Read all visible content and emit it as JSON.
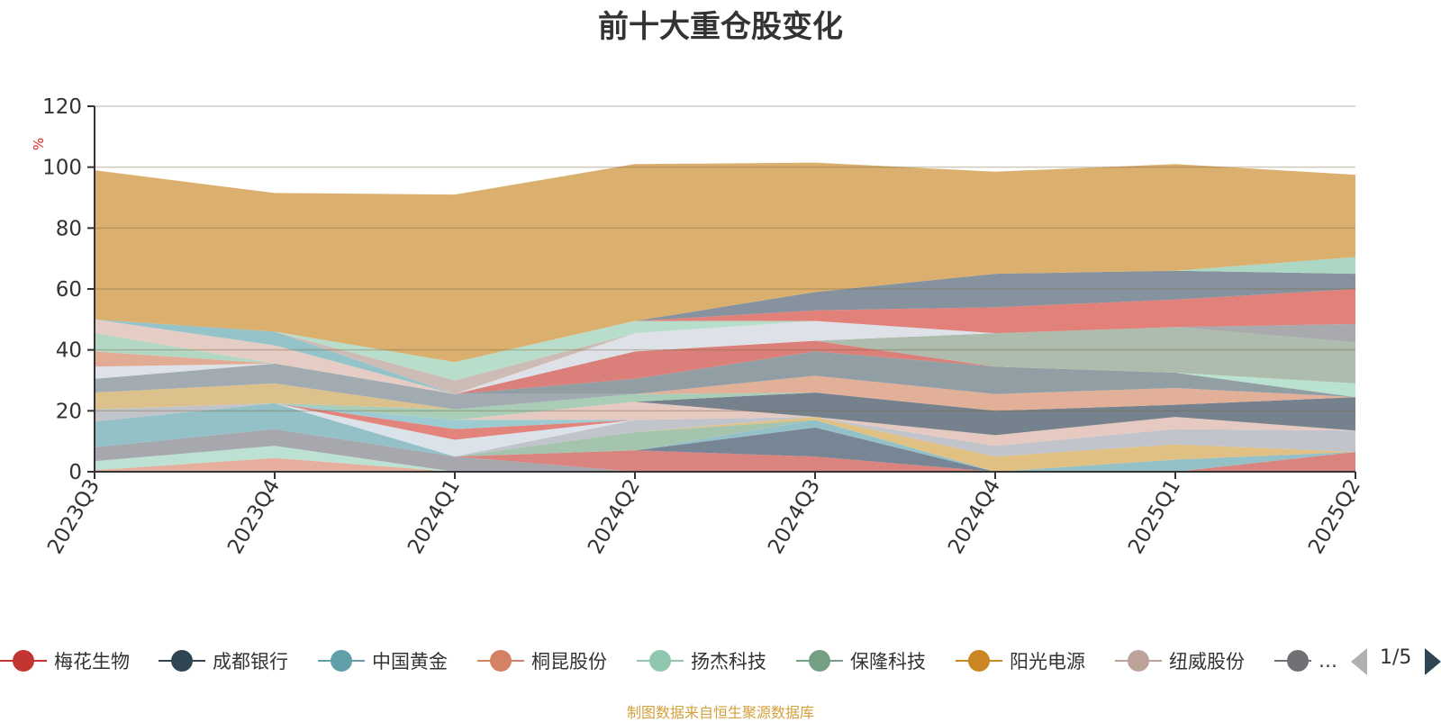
{
  "title": "前十大重仓股变化",
  "source": "制图数据来自恒生聚源数据库",
  "pager": {
    "text": "1/5"
  },
  "legend": [
    {
      "name": "梅花生物",
      "color": "#c23531"
    },
    {
      "name": "成都银行",
      "color": "#2f4554"
    },
    {
      "name": "中国黄金",
      "color": "#61a0a8"
    },
    {
      "name": "桐昆股份",
      "color": "#d48265"
    },
    {
      "name": "扬杰科技",
      "color": "#91c7ae"
    },
    {
      "name": "保隆科技",
      "color": "#749f83"
    },
    {
      "name": "阳光电源",
      "color": "#ca8622"
    },
    {
      "name": "纽威股份",
      "color": "#bda29a"
    },
    {
      "name": "…",
      "color": "#6e7074"
    }
  ],
  "chart_data": {
    "type": "area",
    "stacked": true,
    "ylabel": "%",
    "ylim": [
      0,
      120
    ],
    "yticks": [
      0,
      20,
      40,
      60,
      80,
      100,
      120
    ],
    "categories": [
      "2023Q3",
      "2023Q4",
      "2024Q1",
      "2024Q2",
      "2024Q3",
      "2024Q4",
      "2025Q1",
      "2025Q2"
    ],
    "series": [
      {
        "color": "#e4a895",
        "values": [
          0.5,
          4.5,
          0,
          0,
          0,
          0,
          0,
          0
        ]
      },
      {
        "color": "#b8dfcf",
        "values": [
          3,
          4,
          0,
          0,
          0,
          0,
          0,
          0
        ]
      },
      {
        "color": "#a0a0a8",
        "values": [
          4.5,
          5.5,
          5,
          0,
          0,
          0,
          0,
          0
        ]
      },
      {
        "color": "#d77b76",
        "values": [
          0,
          0,
          0,
          7,
          5,
          0,
          0,
          6.5
        ]
      },
      {
        "color": "#6e7c8c",
        "values": [
          0,
          0,
          0,
          0,
          9.5,
          0,
          0,
          0
        ]
      },
      {
        "color": "#8cbcc4",
        "values": [
          8.5,
          8.5,
          0,
          0,
          2.5,
          0,
          4,
          0
        ]
      },
      {
        "color": "#9dbfa8",
        "values": [
          0,
          0,
          0,
          6,
          0,
          0,
          0,
          0
        ]
      },
      {
        "color": "#dfbb7b",
        "values": [
          0,
          0,
          0,
          0,
          1,
          5,
          5,
          0
        ]
      },
      {
        "color": "#bdc0c8",
        "values": [
          4,
          0,
          0,
          4,
          0,
          3.5,
          5,
          7
        ]
      },
      {
        "color": "#d8e0e8",
        "values": [
          0,
          0,
          5.5,
          0,
          0,
          0,
          0,
          0
        ]
      },
      {
        "color": "#e07a72",
        "values": [
          0,
          0,
          3.5,
          0,
          0,
          0,
          0,
          0
        ]
      },
      {
        "color": "#94c8cf",
        "values": [
          0,
          0,
          3,
          0,
          0,
          0,
          0,
          0
        ]
      },
      {
        "color": "#e4c6bd",
        "values": [
          0,
          0,
          0,
          6,
          0,
          3.5,
          4,
          0
        ]
      },
      {
        "color": "#6b7985",
        "values": [
          0,
          0,
          0,
          0,
          8,
          8,
          4,
          11
        ]
      },
      {
        "color": "#a3c9b0",
        "values": [
          0,
          0,
          3.5,
          2.5,
          0,
          0,
          0,
          0
        ]
      },
      {
        "color": "#e0a991",
        "values": [
          0,
          0,
          0,
          0,
          5.5,
          5.5,
          5.5,
          0
        ]
      },
      {
        "color": "#d9bc84",
        "values": [
          5.5,
          6.5,
          0,
          0,
          0,
          0,
          0,
          0
        ]
      },
      {
        "color": "#9aa5ab",
        "values": [
          4.5,
          6.5,
          5,
          0,
          0,
          0,
          0,
          0
        ]
      },
      {
        "color": "#89989e",
        "values": [
          0,
          0,
          0,
          5,
          8,
          9,
          5,
          0
        ]
      },
      {
        "color": "#b5e0cc",
        "values": [
          0,
          0,
          0,
          0,
          0,
          0,
          0,
          4.5
        ]
      },
      {
        "color": "#d87570",
        "values": [
          0,
          0,
          0,
          9,
          3.5,
          0,
          0,
          0
        ]
      },
      {
        "color": "#a7b7a6",
        "values": [
          0,
          0,
          0,
          0,
          0,
          11,
          15,
          13.5
        ]
      },
      {
        "color": "#dce0e6",
        "values": [
          4,
          0,
          0,
          6,
          6.5,
          0,
          0,
          0
        ]
      },
      {
        "color": "#e0a68c",
        "values": [
          5,
          0,
          0,
          0,
          0,
          0,
          0,
          0
        ]
      },
      {
        "color": "#acd5bf",
        "values": [
          6,
          0,
          0,
          0,
          0,
          0,
          0,
          0
        ]
      },
      {
        "color": "#e3c8c0",
        "values": [
          4.5,
          6,
          0,
          0,
          0,
          0,
          0,
          0
        ]
      },
      {
        "color": "#8cbec5",
        "values": [
          0,
          4.5,
          0,
          0,
          0,
          0,
          0,
          0
        ]
      },
      {
        "color": "#c9b7af",
        "values": [
          0,
          0,
          4.5,
          0,
          0,
          0,
          0,
          0
        ]
      },
      {
        "color": "#b3dbc7",
        "values": [
          0,
          0,
          6,
          4,
          0,
          0,
          0,
          0
        ]
      },
      {
        "color": "#a2a4a8",
        "values": [
          0,
          0,
          0,
          0,
          0,
          0,
          0,
          6
        ]
      },
      {
        "color": "#e19b8f",
        "values": [
          0,
          0,
          0,
          0,
          0,
          0,
          0,
          0
        ]
      },
      {
        "color": "#e07670",
        "values": [
          0,
          0,
          0,
          0,
          3.5,
          8.5,
          9,
          11.5
        ]
      },
      {
        "color": "#7d8a96",
        "values": [
          0,
          0,
          0,
          0,
          6,
          11,
          9.5,
          5
        ]
      },
      {
        "color": "#a6d4c0",
        "values": [
          0,
          0,
          0,
          0,
          0,
          0,
          0,
          5.5
        ]
      },
      {
        "color": "#d8aa64",
        "values": [
          49,
          45.5,
          55,
          51.5,
          42.5,
          33.5,
          35,
          27
        ]
      }
    ]
  }
}
